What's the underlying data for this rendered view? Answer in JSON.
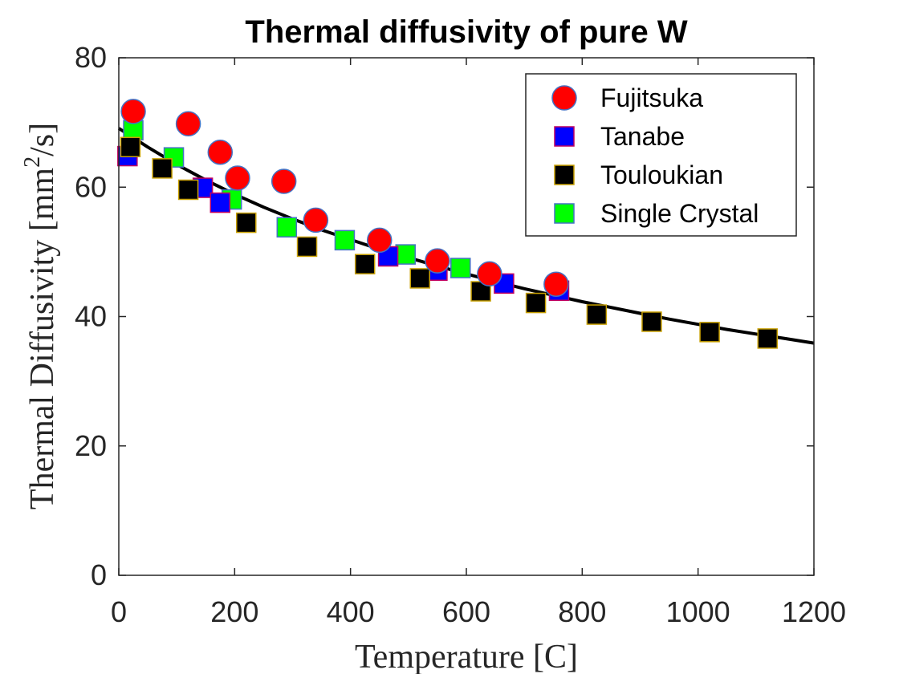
{
  "chart_data": {
    "type": "scatter",
    "title": "Thermal diffusivity of pure W",
    "xlabel": "Temperature [C]",
    "ylabel": "Thermal Diffusivity [mm²/s]",
    "ylabel_parts": {
      "pre": "Thermal Diffusivity [mm",
      "sup": "2",
      "post": "/s]"
    },
    "xlim": [
      0,
      1200
    ],
    "ylim": [
      0,
      80
    ],
    "xticks": [
      0,
      200,
      400,
      600,
      800,
      1000,
      1200
    ],
    "yticks": [
      0,
      20,
      40,
      60,
      80
    ],
    "grid": false,
    "legend_position": "top-right",
    "series": [
      {
        "name": "Fujitsuka",
        "marker": "circle",
        "color": "#ff0000",
        "edge_color": "#4472c4",
        "x": [
          25,
          120,
          175,
          205,
          285,
          340,
          450,
          550,
          640,
          755
        ],
        "y": [
          71.7,
          69.8,
          65.4,
          61.4,
          60.9,
          54.9,
          51.8,
          48.6,
          46.6,
          45.0
        ]
      },
      {
        "name": "Tanabe",
        "marker": "square",
        "color": "#0000ff",
        "edge_color": "#c00060",
        "x": [
          15,
          145,
          175,
          465,
          550,
          665,
          760
        ],
        "y": [
          64.8,
          59.9,
          57.6,
          49.3,
          47.1,
          45.1,
          44.0
        ]
      },
      {
        "name": "Touloukian",
        "marker": "square",
        "color": "#000000",
        "edge_color": "#c8a000",
        "x": [
          20,
          75,
          120,
          220,
          325,
          425,
          520,
          625,
          720,
          825,
          920,
          1020,
          1120
        ],
        "y": [
          66.2,
          62.9,
          59.6,
          54.5,
          50.8,
          48.1,
          45.9,
          43.9,
          42.1,
          40.3,
          39.2,
          37.6,
          36.6
        ]
      },
      {
        "name": "Single Crystal",
        "marker": "square",
        "color": "#00ff00",
        "edge_color": "#4472c4",
        "x": [
          25,
          95,
          195,
          290,
          390,
          495,
          590
        ],
        "y": [
          68.8,
          64.6,
          58.1,
          53.8,
          51.8,
          49.6,
          47.5
        ]
      }
    ],
    "fit_curve": {
      "color": "#000000",
      "x": [
        0,
        50,
        100,
        150,
        200,
        250,
        300,
        350,
        400,
        450,
        500,
        550,
        600,
        650,
        700,
        750,
        800,
        850,
        900,
        950,
        1000,
        1050,
        1100,
        1150,
        1200
      ],
      "y": [
        69.1,
        66.2,
        63.5,
        61.1,
        58.9,
        56.9,
        55.1,
        53.4,
        51.9,
        50.4,
        49.1,
        47.8,
        46.6,
        45.4,
        44.3,
        43.3,
        42.3,
        41.4,
        40.5,
        39.6,
        38.8,
        38.0,
        37.3,
        36.6,
        35.9
      ]
    }
  }
}
